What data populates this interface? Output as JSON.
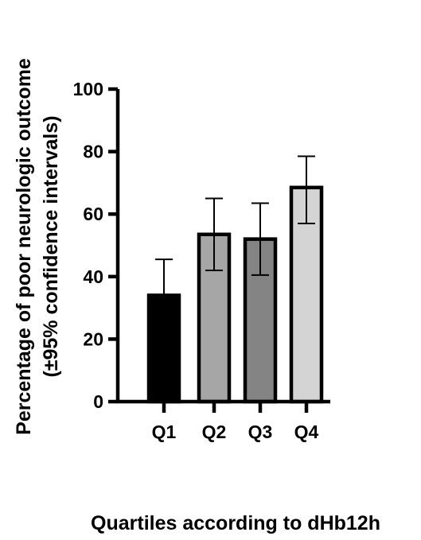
{
  "chart_data": {
    "type": "bar",
    "categories": [
      "Q1",
      "Q2",
      "Q3",
      "Q4"
    ],
    "values": [
      34,
      53.5,
      52,
      68.5
    ],
    "error_low": [
      22,
      42,
      40.5,
      57
    ],
    "error_high": [
      45.5,
      65,
      63.5,
      78.5
    ],
    "series": [
      {
        "values": [
          34,
          53.5,
          52,
          68.5
        ]
      }
    ],
    "bar_colors": [
      "#000000",
      "#a6a6a6",
      "#848484",
      "#d4d4d4"
    ],
    "ylabel_line1": "Percentage of poor neurologic outcome",
    "ylabel_line2": "(±95% confidence intervals)",
    "xlabel": "Quartiles according to dHb12h",
    "ylim": [
      0,
      100
    ],
    "yticks": [
      0,
      20,
      40,
      60,
      80,
      100
    ],
    "ytick_labels": [
      "0",
      "20",
      "40",
      "60",
      "80",
      "100"
    ],
    "grid": false,
    "legend": "none"
  }
}
